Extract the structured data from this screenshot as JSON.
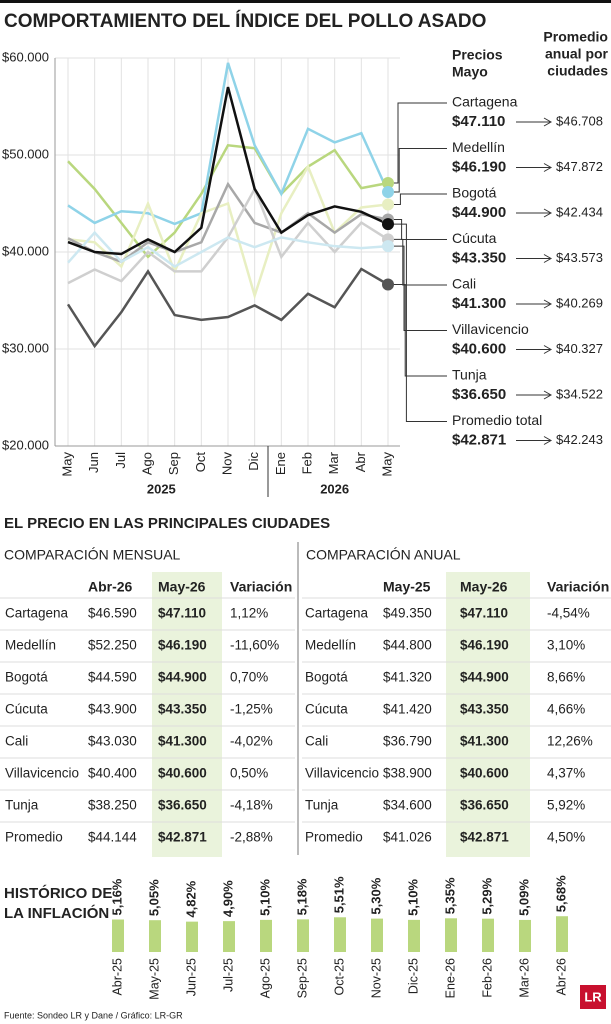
{
  "title": "COMPORTAMIENTO DEL ÍNDICE DEL POLLO ASADO",
  "chart_data": [
    {
      "type": "line",
      "categories": [
        "May",
        "Jun",
        "Jul",
        "Ago",
        "Sep",
        "Oct",
        "Nov",
        "Dic",
        "Ene",
        "Feb",
        "Mar",
        "Abr",
        "May"
      ],
      "x_group_labels": [
        "2025",
        "2026"
      ],
      "ylim": [
        20000,
        60000
      ],
      "yticks": [
        {
          "value": 20000,
          "label": "$20.000"
        },
        {
          "value": 30000,
          "label": "$30.000"
        },
        {
          "value": 40000,
          "label": "$40.000"
        },
        {
          "value": 50000,
          "label": "$50.000"
        },
        {
          "value": 60000,
          "label": "$60.000"
        }
      ],
      "grid": true,
      "price_header": [
        "Precios",
        "Mayo"
      ],
      "annual_header": [
        "Promedio",
        "anual por",
        "ciudades"
      ],
      "series": [
        {
          "name": "Cartagena",
          "color": "#b9d77e",
          "values": [
            49350,
            46500,
            43000,
            39500,
            42000,
            46000,
            51000,
            50700,
            46000,
            48800,
            50500,
            46590,
            47110
          ],
          "value_labels": [
            null,
            null,
            null,
            null,
            null,
            null,
            null,
            null,
            null,
            null,
            null,
            null,
            "$47.110"
          ],
          "annual_label": "$46.708"
        },
        {
          "name": "Medellín",
          "color": "#8fd3e8",
          "values": [
            44800,
            43000,
            44200,
            44000,
            42900,
            44000,
            59500,
            51000,
            46000,
            52700,
            51300,
            52250,
            46190
          ],
          "value_labels": [
            null,
            null,
            null,
            null,
            null,
            null,
            null,
            null,
            null,
            null,
            null,
            null,
            "$46.190"
          ],
          "annual_label": "$47.872"
        },
        {
          "name": "Bogotá",
          "color": "#e8efc2",
          "values": [
            41320,
            41000,
            38500,
            45000,
            38000,
            44000,
            45000,
            35500,
            44000,
            48800,
            42000,
            44590,
            44900
          ],
          "value_labels": [
            null,
            null,
            null,
            null,
            null,
            null,
            null,
            null,
            null,
            null,
            null,
            null,
            "$44.900"
          ],
          "annual_label": "$42.434"
        },
        {
          "name": "Cúcuta",
          "color": "#a8a8a8",
          "values": [
            41420,
            40000,
            39000,
            41000,
            40000,
            41000,
            47000,
            43000,
            42000,
            44000,
            42000,
            43900,
            43350
          ],
          "value_labels": [
            null,
            null,
            null,
            null,
            null,
            null,
            null,
            null,
            null,
            null,
            null,
            null,
            "$43.350"
          ],
          "annual_label": "$43.573"
        },
        {
          "name": "Cali",
          "color": "#cfcfcf",
          "values": [
            36790,
            38200,
            37000,
            40000,
            38000,
            38000,
            41500,
            46500,
            39500,
            43000,
            40000,
            43030,
            41300
          ],
          "value_labels": [
            null,
            null,
            null,
            null,
            null,
            null,
            null,
            null,
            null,
            null,
            null,
            null,
            "$41.300"
          ],
          "annual_label": "$40.269"
        },
        {
          "name": "Villavicencio",
          "color": "#cde8f1",
          "values": [
            38900,
            42000,
            39000,
            40500,
            38500,
            40000,
            41500,
            40500,
            41500,
            41000,
            40600,
            40400,
            40600
          ],
          "value_labels": [
            null,
            null,
            null,
            null,
            null,
            null,
            null,
            null,
            null,
            null,
            null,
            null,
            "$40.600"
          ],
          "annual_label": "$40.327"
        },
        {
          "name": "Tunja",
          "color": "#555555",
          "values": [
            34600,
            30300,
            33800,
            38000,
            33500,
            33000,
            33300,
            34500,
            33000,
            35700,
            34300,
            38250,
            36650
          ],
          "value_labels": [
            null,
            null,
            null,
            null,
            null,
            null,
            null,
            null,
            null,
            null,
            null,
            null,
            "$36.650"
          ],
          "annual_label": "$34.522"
        },
        {
          "name": "Promedio total",
          "color": "#111111",
          "values": [
            41026,
            40000,
            39800,
            41300,
            40000,
            42500,
            57000,
            46500,
            42000,
            43800,
            44700,
            44144,
            42871
          ],
          "value_labels": [
            null,
            null,
            null,
            null,
            null,
            null,
            null,
            null,
            null,
            null,
            null,
            null,
            "$42.871"
          ],
          "annual_label": "$42.243"
        }
      ]
    },
    {
      "type": "bar",
      "title": [
        "HISTÓRICO DE",
        "LA INFLACIÓN"
      ],
      "color": "#b9d77e",
      "categories": [
        "Abr-25",
        "May-25",
        "Jun-25",
        "Jul-25",
        "Ago-25",
        "Sep-25",
        "Oct-25",
        "Nov-25",
        "Dic-25",
        "Ene-26",
        "Feb-26",
        "Mar-26",
        "Abr-26"
      ],
      "values": [
        5.16,
        5.05,
        4.82,
        4.9,
        5.1,
        5.18,
        5.51,
        5.3,
        5.1,
        5.35,
        5.29,
        5.09,
        5.68
      ],
      "value_labels": [
        "5,16%",
        "5,05%",
        "4,82%",
        "4,90%",
        "5,10%",
        "5,18%",
        "5,51%",
        "5,30%",
        "5,10%",
        "5,35%",
        "5,29%",
        "5,09%",
        "5,68%"
      ]
    }
  ],
  "section_title": "EL PRECIO EN LAS PRINCIPALES CIUDADES",
  "tables": [
    {
      "title": "COMPARACIÓN MENSUAL",
      "columns": [
        "Abr-26",
        "May-26",
        "Variación"
      ],
      "rows": [
        [
          "Cartagena",
          "$46.590",
          "$47.110",
          "1,12%"
        ],
        [
          "Medellín",
          "$52.250",
          "$46.190",
          "-11,60%"
        ],
        [
          "Bogotá",
          "$44.590",
          "$44.900",
          "0,70%"
        ],
        [
          "Cúcuta",
          "$43.900",
          "$43.350",
          "-1,25%"
        ],
        [
          "Cali",
          "$43.030",
          "$41.300",
          "-4,02%"
        ],
        [
          "Villavicencio",
          "$40.400",
          "$40.600",
          "0,50%"
        ],
        [
          "Tunja",
          "$38.250",
          "$36.650",
          "-4,18%"
        ],
        [
          "Promedio",
          "$44.144",
          "$42.871",
          "-2,88%"
        ]
      ]
    },
    {
      "title": "COMPARACIÓN ANUAL",
      "columns": [
        "May-25",
        "May-26",
        "Variación"
      ],
      "rows": [
        [
          "Cartagena",
          "$49.350",
          "$47.110",
          "-4,54%"
        ],
        [
          "Medellín",
          "$44.800",
          "$46.190",
          "3,10%"
        ],
        [
          "Bogotá",
          "$41.320",
          "$44.900",
          "8,66%"
        ],
        [
          "Cúcuta",
          "$41.420",
          "$43.350",
          "4,66%"
        ],
        [
          "Cali",
          "$36.790",
          "$41.300",
          "12,26%"
        ],
        [
          "Villavicencio",
          "$38.900",
          "$40.600",
          "4,37%"
        ],
        [
          "Tunja",
          "$34.600",
          "$36.650",
          "5,92%"
        ],
        [
          "Promedio",
          "$41.026",
          "$42.871",
          "4,50%"
        ]
      ]
    }
  ],
  "source": "Fuente: Sondeo LR y Dane / Gráfico: LR-GR",
  "logo": "LR"
}
